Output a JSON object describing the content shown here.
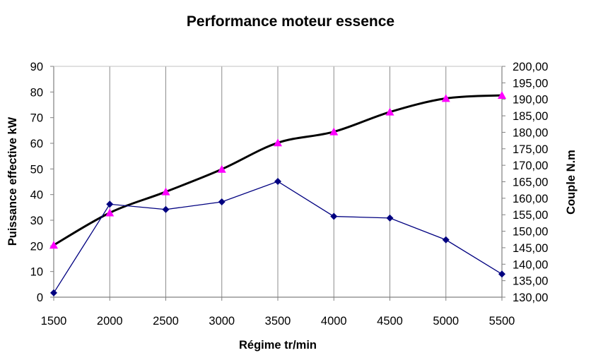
{
  "chart_data": {
    "type": "line",
    "title": "Performance moteur essence",
    "xlabel": "Régime tr/min",
    "ylabel": "Puissance effective kW",
    "y2label": "Couple N.m",
    "x": [
      1500,
      2000,
      2500,
      3000,
      3500,
      4000,
      4500,
      5000,
      5500
    ],
    "xlim": [
      1500,
      5500
    ],
    "ylim": [
      0,
      90
    ],
    "y2lim": [
      130,
      200
    ],
    "x_ticks": [
      "1500",
      "2000",
      "2500",
      "3000",
      "3500",
      "4000",
      "4500",
      "5000",
      "5500"
    ],
    "y_ticks": [
      "0",
      "10",
      "20",
      "30",
      "40",
      "50",
      "60",
      "70",
      "80",
      "90"
    ],
    "y2_ticks": [
      "130,00",
      "135,00",
      "140,00",
      "145,00",
      "150,00",
      "155,00",
      "160,00",
      "165,00",
      "170,00",
      "175,00",
      "180,00",
      "185,00",
      "190,00",
      "195,00",
      "200,00"
    ],
    "grid": {
      "vertical": true,
      "horizontal": false
    },
    "legend": "none",
    "series": [
      {
        "axis": "left",
        "marker": "triangle",
        "line_color": "#000000",
        "marker_color": "#ff00ff",
        "values": [
          20.3,
          32.9,
          41.1,
          49.9,
          60.2,
          64.5,
          72.2,
          77.5,
          78.7
        ]
      },
      {
        "axis": "right",
        "marker": "diamond",
        "line_color": "#000080",
        "marker_color": "#000080",
        "values": [
          131.3,
          158.2,
          156.6,
          158.9,
          165.1,
          154.5,
          154.0,
          147.4,
          137.0
        ]
      }
    ]
  }
}
